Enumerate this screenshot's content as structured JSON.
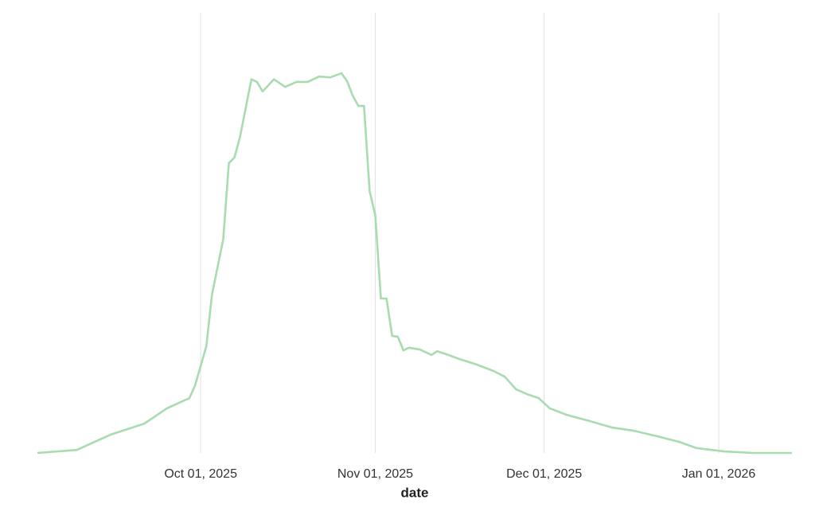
{
  "chart_data": {
    "type": "line",
    "x_label": "date",
    "x": [
      "2025-09-02",
      "2025-09-09",
      "2025-09-15",
      "2025-09-21",
      "2025-09-25",
      "2025-09-29",
      "2025-09-30",
      "2025-10-02",
      "2025-10-03",
      "2025-10-05",
      "2025-10-06",
      "2025-10-07",
      "2025-10-08",
      "2025-10-10",
      "2025-10-11",
      "2025-10-12",
      "2025-10-14",
      "2025-10-16",
      "2025-10-18",
      "2025-10-20",
      "2025-10-22",
      "2025-10-24",
      "2025-10-26",
      "2025-10-27",
      "2025-10-28",
      "2025-10-29",
      "2025-10-30",
      "2025-10-31",
      "2025-11-01",
      "2025-11-02",
      "2025-11-03",
      "2025-11-04",
      "2025-11-05",
      "2025-11-06",
      "2025-11-07",
      "2025-11-09",
      "2025-11-11",
      "2025-11-12",
      "2025-11-14",
      "2025-11-16",
      "2025-11-19",
      "2025-11-22",
      "2025-11-24",
      "2025-11-26",
      "2025-11-28",
      "2025-11-30",
      "2025-12-02",
      "2025-12-05",
      "2025-12-09",
      "2025-12-13",
      "2025-12-17",
      "2025-12-21",
      "2025-12-25",
      "2025-12-28",
      "2026-01-02",
      "2026-01-07",
      "2026-01-14"
    ],
    "values": [
      0,
      0.8,
      4.8,
      7.7,
      11.7,
      14.4,
      17.7,
      28,
      41.5,
      56,
      76,
      77.5,
      83,
      98,
      97.3,
      94.8,
      98,
      96,
      97.3,
      97.3,
      98.7,
      98.5,
      99.6,
      97.5,
      93.7,
      91,
      91,
      68.7,
      62.4,
      40.5,
      40.5,
      30.7,
      30.5,
      26.9,
      27.6,
      27.1,
      25.7,
      26.7,
      25.7,
      24.6,
      23.2,
      21.5,
      20,
      16.7,
      15.4,
      14.4,
      11.7,
      10,
      8.4,
      6.7,
      5.8,
      4.4,
      2.9,
      1.3,
      0.4,
      0,
      0
    ],
    "color": "#a8dbb0",
    "xlim": [
      "2025-09-02",
      "2026-01-14"
    ],
    "ylim": [
      0,
      100
    ],
    "xticks": [
      {
        "value": "2025-10-01",
        "label": "Oct 01, 2025"
      },
      {
        "value": "2025-11-01",
        "label": "Nov 01, 2025"
      },
      {
        "value": "2025-12-01",
        "label": "Dec 01, 2025"
      },
      {
        "value": "2026-01-01",
        "label": "Jan 01, 2026"
      }
    ],
    "grid": true
  }
}
